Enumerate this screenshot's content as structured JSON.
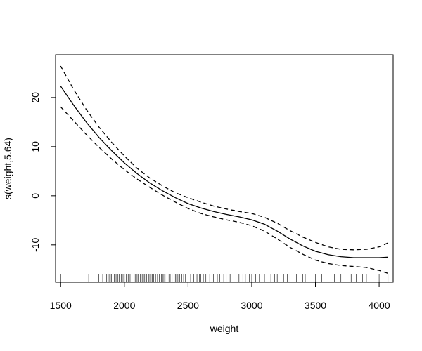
{
  "chart_data": {
    "type": "line",
    "title": "",
    "xlabel": "weight",
    "ylabel": "s(weight,5.64)",
    "xlim": [
      1460,
      4110
    ],
    "ylim": [
      -17.6,
      28.7
    ],
    "x_ticks": [
      1500,
      2000,
      2500,
      3000,
      3500,
      4000
    ],
    "y_ticks": [
      -10,
      0,
      10,
      20
    ],
    "grid": false,
    "legend": "none",
    "series": [
      {
        "style": "solid",
        "x": [
          1500,
          1600,
          1700,
          1800,
          1900,
          2000,
          2100,
          2200,
          2300,
          2400,
          2500,
          2600,
          2700,
          2800,
          2900,
          3000,
          3100,
          3200,
          3300,
          3400,
          3500,
          3600,
          3700,
          3800,
          3900,
          4000,
          4070
        ],
        "y": [
          22.3,
          18.5,
          15.0,
          11.9,
          9.2,
          6.7,
          4.5,
          2.6,
          1.0,
          -0.4,
          -1.6,
          -2.5,
          -3.2,
          -3.8,
          -4.3,
          -4.9,
          -5.8,
          -7.2,
          -8.8,
          -10.2,
          -11.3,
          -12.0,
          -12.4,
          -12.6,
          -12.6,
          -12.6,
          -12.5
        ]
      },
      {
        "style": "dashed",
        "x": [
          1500,
          1600,
          1700,
          1800,
          1900,
          2000,
          2100,
          2200,
          2300,
          2400,
          2500,
          2600,
          2700,
          2800,
          2900,
          3000,
          3100,
          3200,
          3300,
          3400,
          3500,
          3600,
          3700,
          3800,
          3900,
          4000,
          4070
        ],
        "y": [
          26.4,
          21.7,
          17.6,
          14.0,
          10.9,
          8.1,
          5.6,
          3.6,
          2.0,
          0.6,
          -0.4,
          -1.3,
          -2.1,
          -2.7,
          -3.2,
          -3.6,
          -4.4,
          -5.6,
          -7.1,
          -8.4,
          -9.5,
          -10.4,
          -10.9,
          -11.0,
          -10.9,
          -10.4,
          -9.6
        ]
      },
      {
        "style": "dashed",
        "x": [
          1500,
          1600,
          1700,
          1800,
          1900,
          2000,
          2100,
          2200,
          2300,
          2400,
          2500,
          2600,
          2700,
          2800,
          2900,
          3000,
          3100,
          3200,
          3300,
          3400,
          3500,
          3600,
          3700,
          3800,
          3900,
          4000,
          4070
        ],
        "y": [
          18.1,
          15.3,
          12.5,
          9.9,
          7.5,
          5.3,
          3.4,
          1.7,
          0.1,
          -1.3,
          -2.6,
          -3.6,
          -4.3,
          -4.9,
          -5.4,
          -6.1,
          -7.2,
          -8.8,
          -10.5,
          -11.9,
          -13.1,
          -13.8,
          -14.2,
          -14.4,
          -14.6,
          -15.2,
          -15.8
        ]
      }
    ],
    "rug": [
      1500,
      1720,
      1800,
      1830,
      1860,
      1870,
      1880,
      1890,
      1900,
      1910,
      1920,
      1935,
      1950,
      1960,
      1975,
      1990,
      2000,
      2015,
      2030,
      2045,
      2060,
      2075,
      2085,
      2100,
      2110,
      2125,
      2140,
      2150,
      2160,
      2175,
      2190,
      2200,
      2210,
      2220,
      2230,
      2245,
      2260,
      2275,
      2290,
      2300,
      2310,
      2320,
      2335,
      2350,
      2360,
      2375,
      2390,
      2400,
      2410,
      2420,
      2435,
      2450,
      2465,
      2480,
      2500,
      2520,
      2545,
      2570,
      2590,
      2600,
      2620,
      2640,
      2670,
      2700,
      2730,
      2750,
      2780,
      2800,
      2830,
      2860,
      2900,
      2930,
      2950,
      2980,
      3000,
      3030,
      3060,
      3080,
      3100,
      3120,
      3150,
      3180,
      3200,
      3230,
      3250,
      3280,
      3300,
      3350,
      3400,
      3420,
      3450,
      3500,
      3550,
      3650,
      3700,
      3780,
      3820,
      3870,
      3900,
      4000,
      4070
    ]
  }
}
